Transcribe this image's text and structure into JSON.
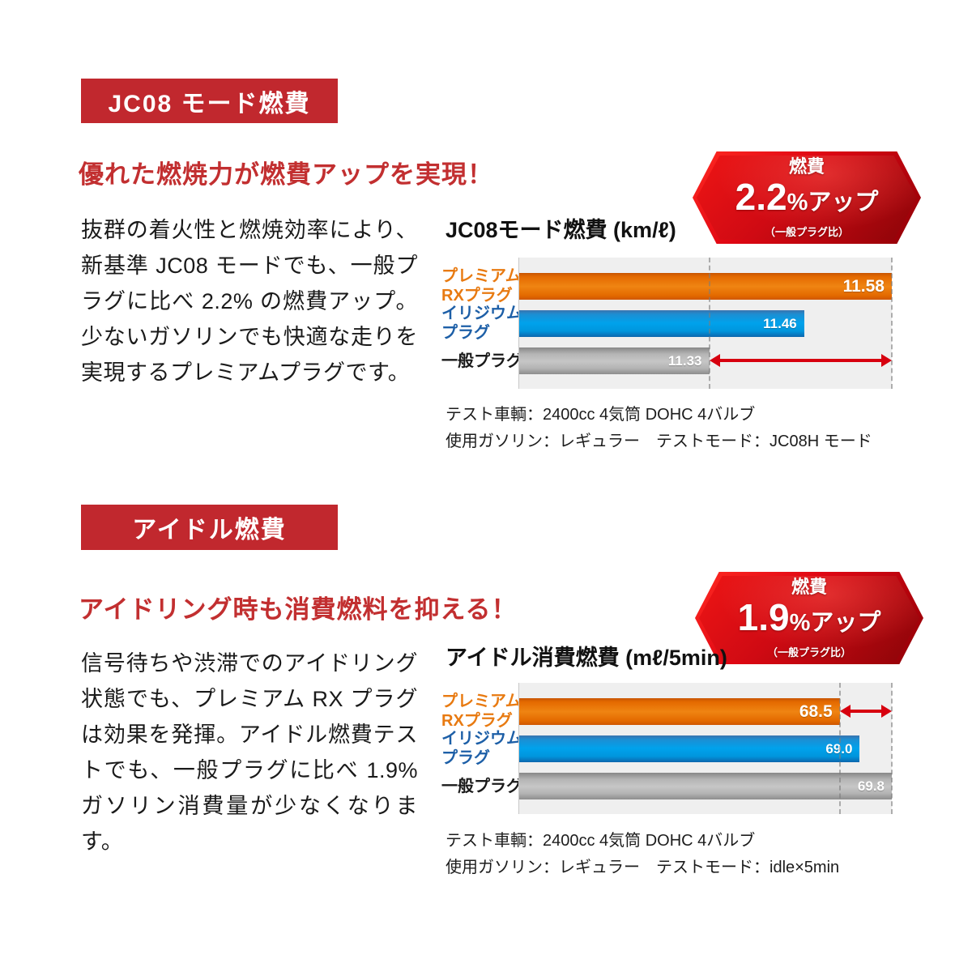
{
  "page": {
    "sections": [
      {
        "tag_label": "JC08 モード燃費",
        "headline": "優れた燃焼力が燃費アップを実現！",
        "badge": {
          "title": "燃費",
          "value": "2.2",
          "suffix": "%アップ",
          "note": "（一般プラグ比）"
        },
        "body": "抜群の着火性と燃焼効率により、新基準 JC08 モードでも、一般プラグに比べ 2.2% の燃費アップ。少ないガソリンでも快適な走りを実現するプレミアムプラグです。",
        "notes": [
          "テスト車輌：2400cc 4気筒 DOHC 4バルブ",
          "使用ガソリン：レギュラー　テストモード：JC08H モード"
        ]
      },
      {
        "tag_label": "アイドル燃費",
        "headline": "アイドリング時も消費燃料を抑える！",
        "badge": {
          "title": "燃費",
          "value": "1.9",
          "suffix": "%アップ",
          "note": "（一般プラグ比）"
        },
        "body": "信号待ちや渋滞でのアイドリング状態でも、プレミアム RX プラグは効果を発揮。アイドル燃費テストでも、一般プラグに比べ 1.9% ガソリン消費量が少なくなります。",
        "notes": [
          "テスト車輌：2400cc 4気筒 DOHC 4バルブ",
          "使用ガソリン：レギュラー　テストモード：idle×5min"
        ]
      }
    ],
    "colors": {
      "accent_red": "#c22f30",
      "tag_bg": "#c1282e",
      "arrow_red": "#d7000f",
      "plot_bg": "#efefef"
    }
  },
  "chart_data": [
    {
      "type": "bar",
      "orientation": "horizontal",
      "title": "JC08モード燃費 (km/ℓ)",
      "categories": [
        "プレミアム RXプラグ",
        "イリジウム プラグ",
        "一般プラグ"
      ],
      "category_lines": [
        [
          "プレミアム",
          "RXプラグ"
        ],
        [
          "イリジウム",
          "プラグ"
        ],
        [
          "一般プラグ",
          ""
        ]
      ],
      "values": [
        11.58,
        11.46,
        11.33
      ],
      "value_labels": [
        "11.58",
        "11.46",
        "11.33"
      ],
      "unit": "km/ℓ",
      "xlim": [
        11.07,
        11.58
      ],
      "bar_colors": [
        "#e87000",
        "#00a0e9",
        "#b0b0b0"
      ],
      "label_colors": [
        "#e87a11",
        "#1d5fa7",
        "#1a1a1a"
      ],
      "dashed_lines": [
        11.33,
        11.58
      ],
      "gap_arrow": {
        "row": 2,
        "from": 11.33,
        "to": 11.58,
        "color": "#d7000f"
      },
      "grid": false,
      "legend": "none"
    },
    {
      "type": "bar",
      "orientation": "horizontal",
      "title": "アイドル消費燃費 (mℓ/5min)",
      "categories": [
        "プレミアム RXプラグ",
        "イリジウム プラグ",
        "一般プラグ"
      ],
      "category_lines": [
        [
          "プレミアム",
          "RXプラグ"
        ],
        [
          "イリジウム",
          "プラグ"
        ],
        [
          "一般プラグ",
          ""
        ]
      ],
      "values": [
        68.5,
        69.0,
        69.8
      ],
      "value_labels": [
        "68.5",
        "69.0",
        "69.8"
      ],
      "unit": "mℓ/5min",
      "xlim": [
        60.5,
        69.8
      ],
      "bar_colors": [
        "#e87000",
        "#00a0e9",
        "#b0b0b0"
      ],
      "label_colors": [
        "#e87a11",
        "#1d5fa7",
        "#1a1a1a"
      ],
      "dashed_lines": [
        68.5,
        69.8
      ],
      "gap_arrow": {
        "row": 0,
        "from": 68.5,
        "to": 69.8,
        "color": "#d7000f"
      },
      "grid": false,
      "legend": "none"
    }
  ]
}
